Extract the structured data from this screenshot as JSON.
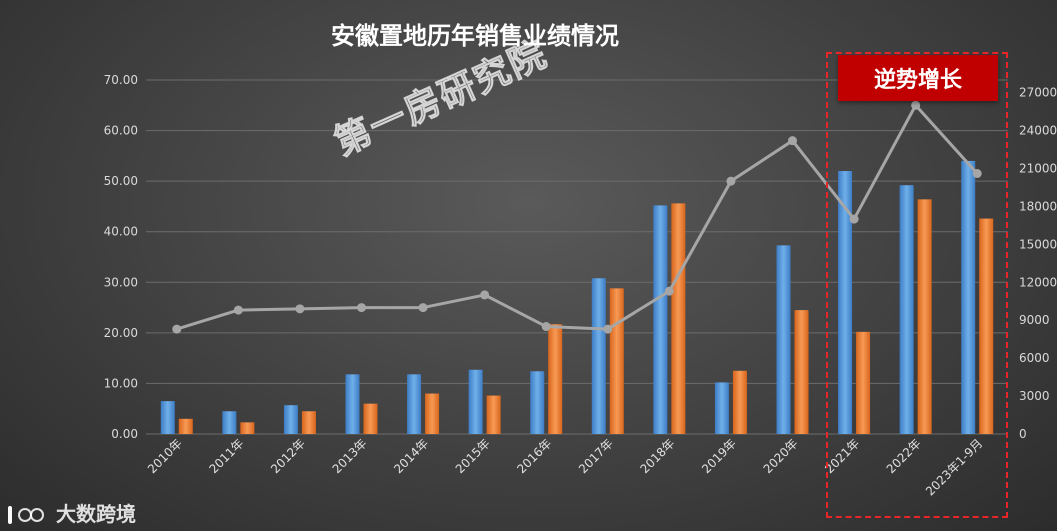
{
  "chart_data": {
    "type": "bar+line",
    "title": "安徽置地历年销售业绩情况",
    "categories": [
      "2010年",
      "2011年",
      "2012年",
      "2013年",
      "2014年",
      "2015年",
      "2016年",
      "2017年",
      "2018年",
      "2019年",
      "2020年",
      "2021年",
      "2022年",
      "2023年1-9月"
    ],
    "series": [
      {
        "type": "bar",
        "axis": "left",
        "color": "#5b9bd5",
        "values": [
          6.5,
          4.5,
          5.7,
          11.8,
          11.8,
          12.7,
          12.4,
          30.8,
          45.2,
          10.2,
          37.3,
          52.0,
          49.2,
          54.0
        ]
      },
      {
        "type": "bar",
        "axis": "left",
        "color": "#ed7d31",
        "values": [
          3.0,
          2.3,
          4.5,
          6.0,
          8.0,
          7.6,
          21.7,
          28.8,
          45.6,
          12.5,
          24.5,
          20.2,
          46.4,
          42.6
        ]
      },
      {
        "type": "line",
        "axis": "right",
        "color": "#a6a6a6",
        "values": [
          8300,
          9800,
          9900,
          10000,
          10000,
          11000,
          8500,
          8300,
          11300,
          20000,
          23200,
          17000,
          26000,
          20600
        ]
      }
    ],
    "y_left": {
      "min": 0,
      "max": 70,
      "ticks": [
        "0.00",
        "10.00",
        "20.00",
        "30.00",
        "40.00",
        "50.00",
        "60.00",
        "70.00"
      ]
    },
    "y_right": {
      "min": 0,
      "max": 28000,
      "ticks": [
        "0",
        "3000",
        "6000",
        "9000",
        "12000",
        "15000",
        "18000",
        "21000",
        "24000",
        "27000"
      ]
    },
    "grid": true,
    "annotation": "逆势增长",
    "highlight_categories": [
      "2021年",
      "2022年",
      "2023年1-9月"
    ],
    "colors": {
      "highlight_border": "#e8262a",
      "badge_bg": "#c00000"
    }
  },
  "watermark": "第一房研究院",
  "logo_text": "大数跨境"
}
